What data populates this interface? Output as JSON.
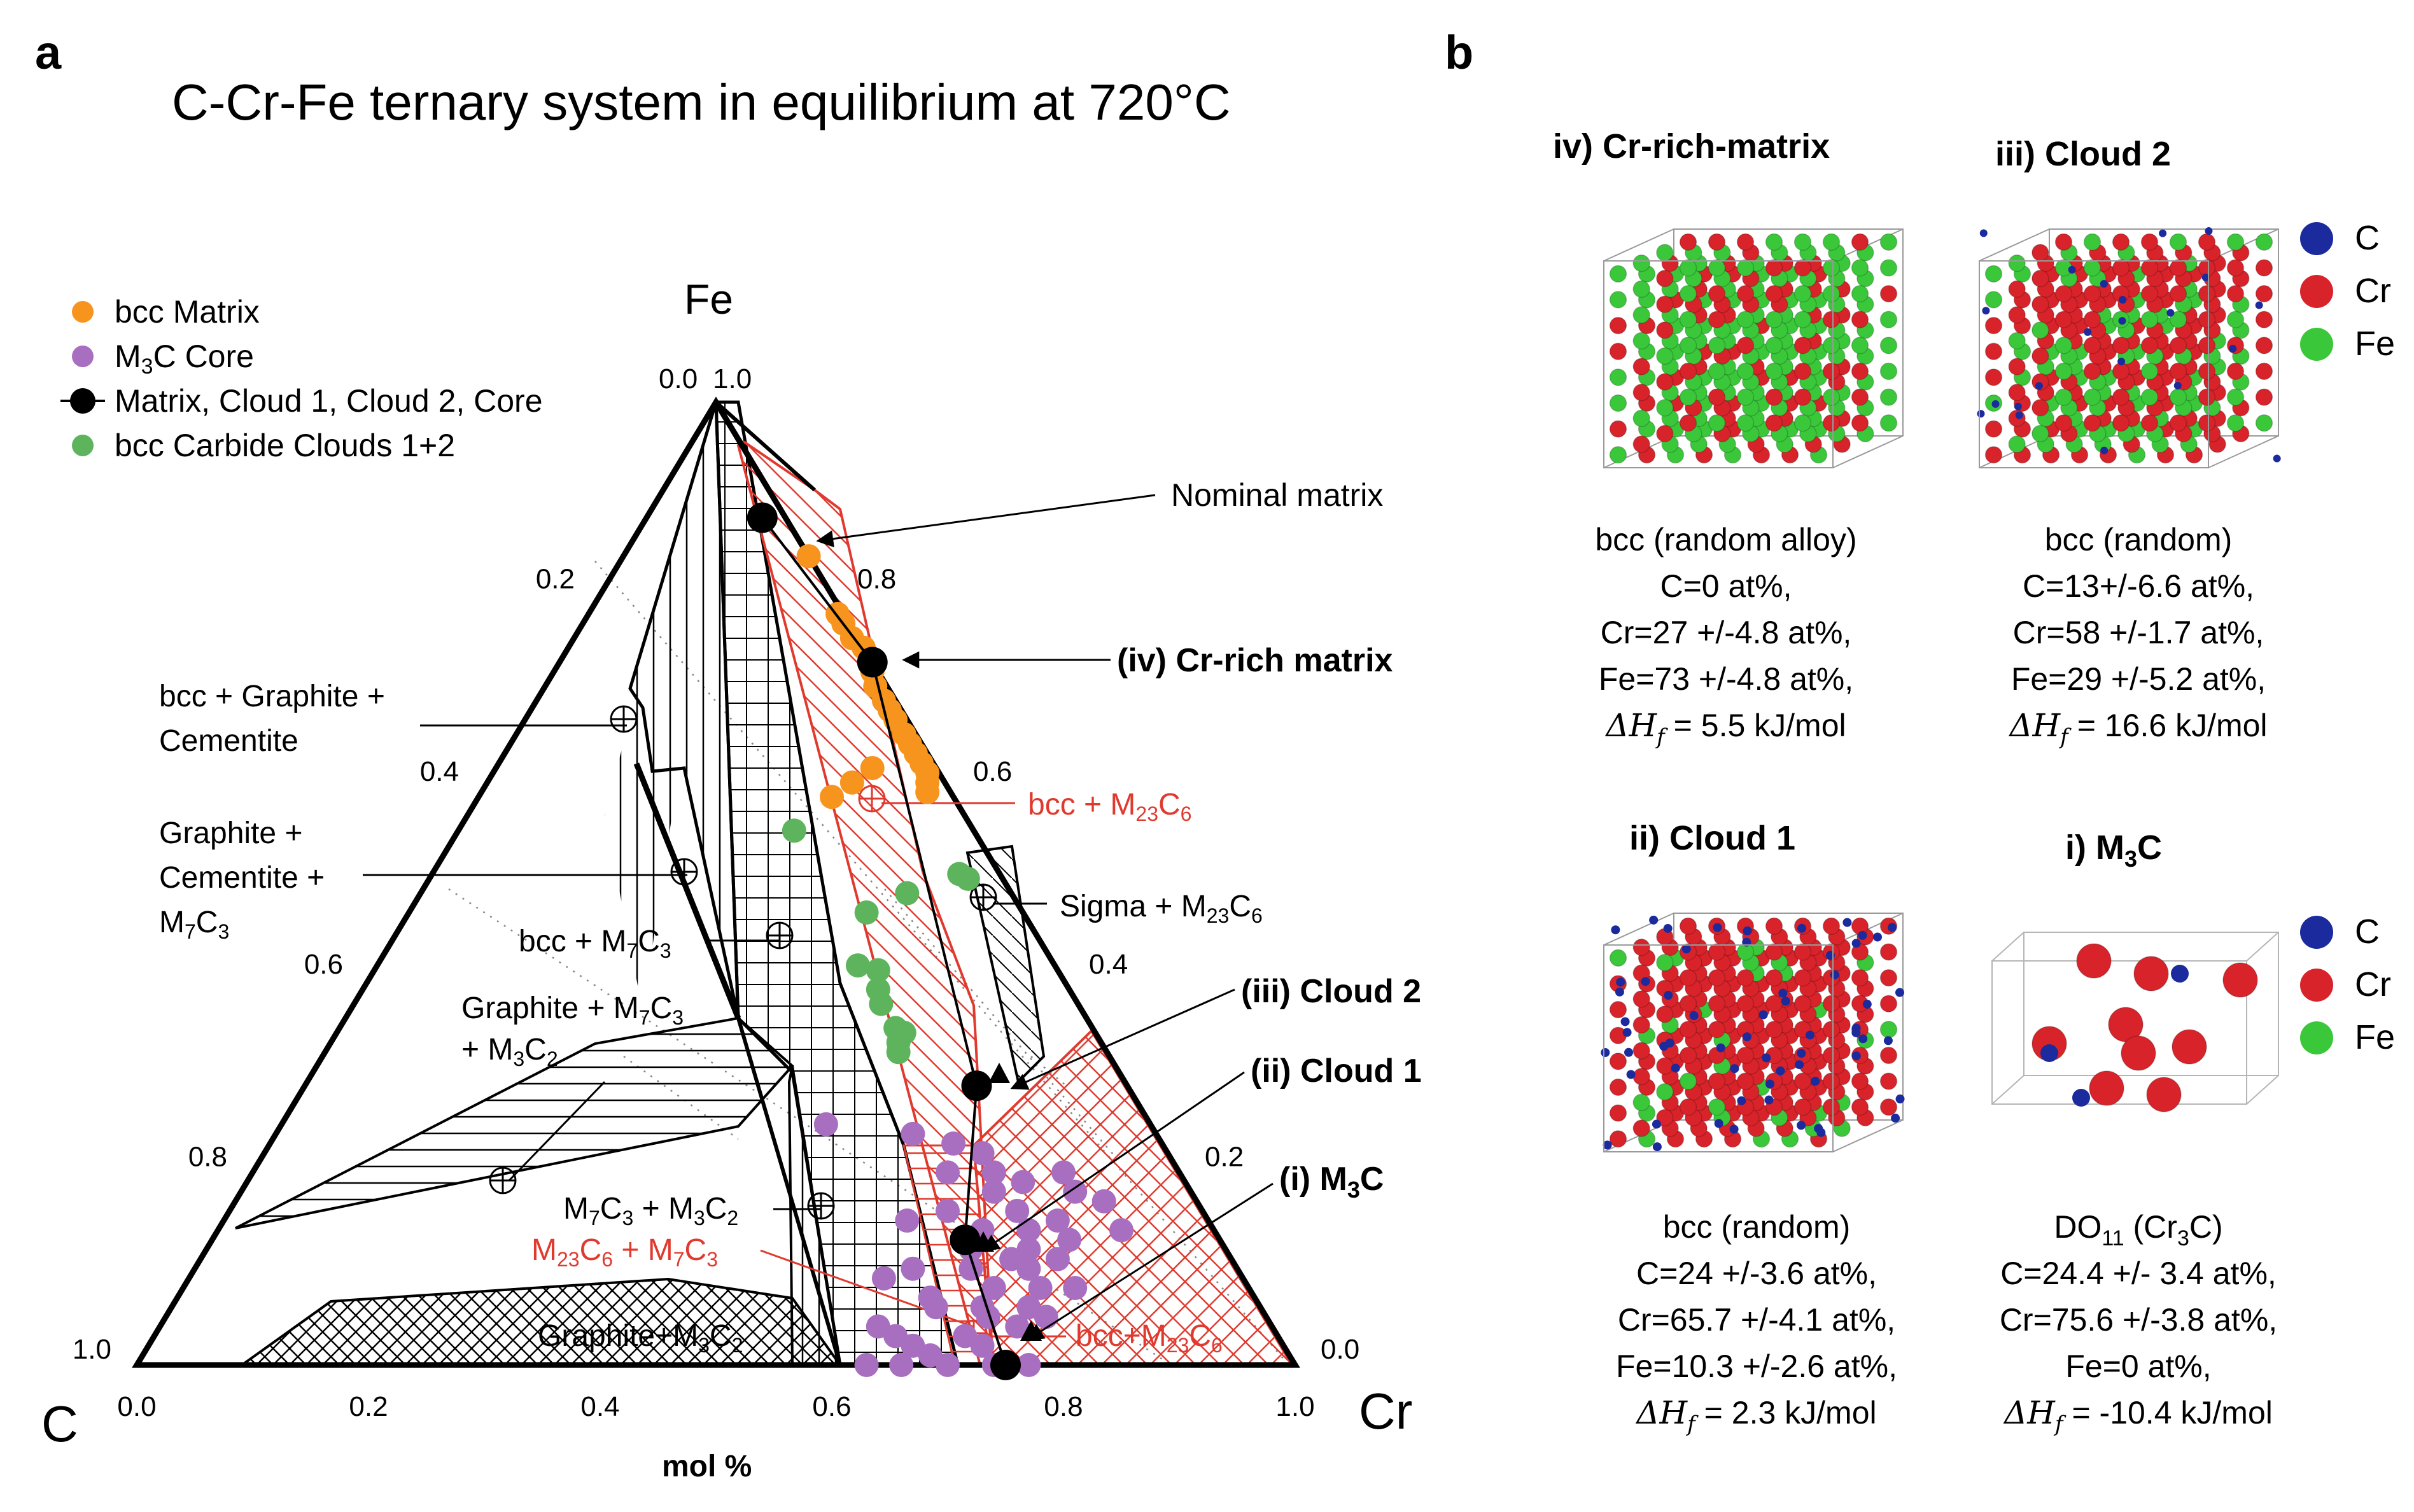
{
  "figure": {
    "panel_a_label": "a",
    "panel_b_label": "b",
    "title": "C-Cr-Fe ternary system in equilibrium at 720°C"
  },
  "legend": {
    "items": [
      {
        "label_main": "bcc Matrix",
        "color": "#F7941D"
      },
      {
        "label_main": "M",
        "sub": "3",
        "label_tail": "C Core",
        "color": "#A86FC0"
      },
      {
        "label_main": "Matrix, Cloud 1, Cloud 2, Core",
        "color": "#000000"
      },
      {
        "label_main": "bcc Carbide Clouds 1+2",
        "color": "#5EB45C"
      }
    ]
  },
  "axes": {
    "vertex_top": "Fe",
    "vertex_left": "C",
    "vertex_right": "Cr",
    "bottom_ticks": [
      "0.0",
      "0.2",
      "0.4",
      "0.6",
      "0.8",
      "1.0"
    ],
    "left_ticks": [
      "0.2",
      "0.4",
      "0.6",
      "0.8",
      "1.0"
    ],
    "right_ticks": [
      "0.8",
      "0.6",
      "0.4",
      "0.2",
      "0.0"
    ],
    "apex_left": "0.0",
    "apex_right": "1.0",
    "xlabel": "mol %"
  },
  "regions": {
    "bcc_graphite_cementite": [
      "bcc + Graphite +",
      "Cementite"
    ],
    "graphite_cementite_m7c3": [
      "Graphite +",
      "Cementite +"
    ],
    "graphite_cementite_m7c3_last": "M",
    "bcc_m7c3": "bcc + M",
    "graphite_m7c3_m3c2": "Graphite + M",
    "m3c2_plus": "+ M",
    "m7c3_m3c2": "M",
    "m23c6_m7c3": "M",
    "graphite_m3c2": "Graphite+M",
    "bcc_m23c6_upper": "bcc + M",
    "sigma_m23c6": "Sigma + M",
    "bcc_m23c6_lower": "bcc+M"
  },
  "annotations": {
    "nominal_matrix": "Nominal matrix",
    "cr_rich_matrix": "(iv) Cr-rich matrix",
    "cloud2": "(iii) Cloud 2",
    "cloud1": "(ii) Cloud 1",
    "m3c": "(i) M"
  },
  "chart_data": {
    "type": "scatter",
    "title": "C-Cr-Fe ternary system in equilibrium at 720°C",
    "coordinates": "ternary mole fractions [Fe, Cr]; C = 1 - Fe - Cr",
    "series": [
      {
        "name": "bcc Matrix",
        "color": "#F7941D",
        "points": [
          [
            0.84,
            0.16
          ],
          [
            0.78,
            0.215
          ],
          [
            0.77,
            0.225
          ],
          [
            0.755,
            0.24
          ],
          [
            0.745,
            0.255
          ],
          [
            0.72,
            0.275
          ],
          [
            0.705,
            0.285
          ],
          [
            0.69,
            0.3
          ],
          [
            0.68,
            0.31
          ],
          [
            0.67,
            0.32
          ],
          [
            0.655,
            0.335
          ],
          [
            0.645,
            0.345
          ],
          [
            0.635,
            0.355
          ],
          [
            0.625,
            0.365
          ],
          [
            0.615,
            0.375
          ],
          [
            0.605,
            0.38
          ],
          [
            0.595,
            0.385
          ],
          [
            0.62,
            0.325
          ],
          [
            0.605,
            0.315
          ],
          [
            0.59,
            0.305
          ]
        ]
      },
      {
        "name": "bcc Carbide Clouds 1+2",
        "color": "#5EB45C",
        "points": [
          [
            0.555,
            0.29
          ],
          [
            0.51,
            0.455
          ],
          [
            0.505,
            0.465
          ],
          [
            0.47,
            0.395
          ],
          [
            0.415,
            0.415
          ],
          [
            0.41,
            0.435
          ],
          [
            0.39,
            0.445
          ],
          [
            0.375,
            0.455
          ],
          [
            0.35,
            0.48
          ],
          [
            0.345,
            0.49
          ],
          [
            0.335,
            0.49
          ],
          [
            0.325,
            0.495
          ],
          [
            0.49,
            0.42
          ]
        ]
      },
      {
        "name": "M3C Core",
        "color": "#A86FC0",
        "points": [
          [
            0.25,
            0.47
          ],
          [
            0.24,
            0.55
          ],
          [
            0.23,
            0.59
          ],
          [
            0.22,
            0.62
          ],
          [
            0.2,
            0.64
          ],
          [
            0.14,
            0.78
          ],
          [
            0.12,
            0.71
          ],
          [
            0.1,
            0.72
          ],
          [
            0.08,
            0.74
          ],
          [
            0.06,
            0.7
          ],
          [
            0.0,
            0.63
          ],
          [
            0.0,
            0.66
          ],
          [
            0.0,
            0.7
          ],
          [
            0.0,
            0.74
          ],
          [
            0.0,
            0.77
          ],
          [
            0.03,
            0.7
          ],
          [
            0.05,
            0.71
          ],
          [
            0.05,
            0.76
          ],
          [
            0.06,
            0.74
          ],
          [
            0.07,
            0.65
          ],
          [
            0.08,
            0.7
          ],
          [
            0.08,
            0.77
          ],
          [
            0.09,
            0.6
          ],
          [
            0.1,
            0.67
          ],
          [
            0.11,
            0.7
          ],
          [
            0.11,
            0.74
          ],
          [
            0.12,
            0.66
          ],
          [
            0.13,
            0.74
          ],
          [
            0.14,
            0.66
          ],
          [
            0.14,
            0.7
          ],
          [
            0.15,
            0.72
          ],
          [
            0.16,
            0.68
          ],
          [
            0.17,
            0.75
          ],
          [
            0.18,
            0.72
          ],
          [
            0.2,
            0.6
          ],
          [
            0.2,
            0.7
          ],
          [
            0.02,
            0.66
          ],
          [
            0.04,
            0.62
          ],
          [
            0.06,
            0.66
          ],
          [
            0.1,
            0.62
          ],
          [
            0.15,
            0.59
          ],
          [
            0.18,
            0.65
          ],
          [
            0.16,
            0.62
          ],
          [
            0.19,
            0.67
          ],
          [
            0.02,
            0.72
          ],
          [
            0.04,
            0.74
          ],
          [
            0.01,
            0.68
          ],
          [
            0.03,
            0.64
          ]
        ]
      },
      {
        "name": "Matrix, Cloud 1, Cloud 2, Core",
        "color": "#000000",
        "points": [
          [
            0.88,
            0.1
          ],
          [
            0.73,
            0.27
          ],
          [
            0.29,
            0.58
          ],
          [
            0.13,
            0.65
          ],
          [
            0.0,
            0.75
          ]
        ]
      }
    ]
  },
  "panel_b": {
    "cells": [
      {
        "title": "iv) Cr-rich-matrix",
        "lines": [
          "bcc (random alloy)",
          "C=0 at%,",
          "Cr=27 +/-4.8 at%,",
          "Fe=73 +/-4.8 at%,"
        ],
        "dh": "= 5.5 kJ/mol"
      },
      {
        "title": "iii) Cloud 2",
        "lines": [
          "bcc (random)",
          "C=13+/-6.6 at%,",
          "Cr=58 +/-1.7 at%,",
          "Fe=29 +/-5.2 at%,"
        ],
        "dh": "= 16.6 kJ/mol"
      },
      {
        "title": "ii) Cloud 1",
        "lines": [
          "bcc (random)",
          "C=24 +/-3.6 at%,",
          "Cr=65.7 +/-4.1 at%,",
          "Fe=10.3 +/-2.6 at%,"
        ],
        "dh": "= 2.3 kJ/mol"
      },
      {
        "title": "i) M",
        "lines": [
          "",
          "C=24.4 +/- 3.4 at%,",
          "Cr=75.6 +/-3.8 at%,",
          "Fe=0 at%,"
        ],
        "dh": "= -10.4 kJ/mol"
      }
    ],
    "do11_prefix": "DO",
    "do11_sub": "11",
    "do11_tail": " (Cr",
    "do11_end": "C)",
    "dh_symbol": "ΔH",
    "dh_sub": "f",
    "legend_c": "C",
    "legend_cr": "Cr",
    "legend_fe": "Fe",
    "colors": {
      "C": "#1B2A9C",
      "Cr": "#D8232A",
      "Fe": "#3AC83A"
    }
  }
}
